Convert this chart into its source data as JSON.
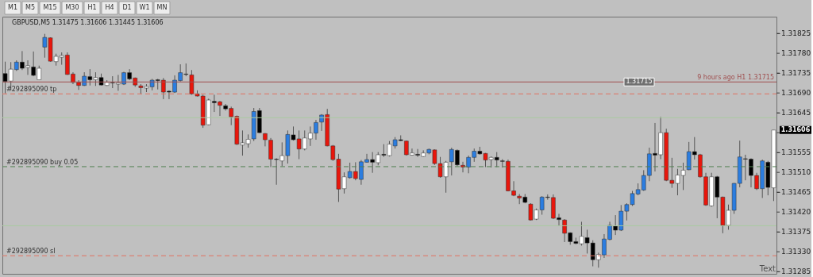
{
  "chart_data": {
    "type": "candlestick",
    "title": "GBPUSD,M5  1.31475 1.31606 1.31445 1.31606",
    "categories": [
      null,
      null,
      null,
      null,
      null,
      null,
      null,
      null,
      null,
      null,
      null,
      null,
      null,
      null,
      null,
      null,
      null,
      null,
      null,
      null,
      null,
      null,
      null,
      null,
      null,
      null,
      null,
      null,
      null,
      null,
      null,
      null,
      null,
      null,
      null,
      null,
      null,
      null,
      null,
      null,
      null,
      null,
      null,
      null,
      null,
      null,
      null,
      null,
      null,
      null,
      null,
      null,
      null,
      null,
      null,
      null,
      null,
      null,
      null,
      null,
      null,
      null,
      null,
      null,
      null,
      null,
      null,
      null,
      null,
      null,
      null,
      null,
      null,
      null,
      null,
      null,
      null,
      null,
      null,
      null,
      null,
      null,
      null,
      null,
      null,
      null,
      null,
      null,
      null,
      null,
      null,
      null,
      null,
      null,
      null,
      null,
      null,
      null,
      null,
      null,
      null,
      null,
      null,
      null,
      null,
      null,
      null,
      null,
      null,
      null,
      null,
      null,
      null,
      null,
      null,
      null,
      null,
      null,
      null,
      null,
      null,
      null,
      null,
      null,
      null,
      null,
      null,
      null,
      null,
      null,
      null,
      null,
      null,
      null,
      null,
      null,
      null
    ],
    "ohlc": [
      [
        1.31734,
        1.31761,
        1.31689,
        1.31716
      ],
      [
        1.31717,
        1.3176,
        1.31695,
        1.31744
      ],
      [
        1.31743,
        1.31764,
        1.3174,
        1.3176
      ],
      [
        1.3176,
        1.31785,
        1.31742,
        1.31746
      ],
      [
        1.31748,
        1.31764,
        1.31731,
        1.31752
      ],
      [
        1.31749,
        1.31784,
        1.31728,
        1.3173
      ],
      [
        1.3172,
        1.31752,
        1.3172,
        1.31746
      ],
      [
        1.31794,
        1.31824,
        1.3177,
        1.31816
      ],
      [
        1.31815,
        1.31816,
        1.31761,
        1.31762
      ],
      [
        1.31761,
        1.31779,
        1.31752,
        1.31773
      ],
      [
        1.31771,
        1.31782,
        1.31754,
        1.31775
      ],
      [
        1.31776,
        1.31782,
        1.31731,
        1.31732
      ],
      [
        1.31733,
        1.31737,
        1.3171,
        1.31714
      ],
      [
        1.31714,
        1.31719,
        1.31697,
        1.31707
      ],
      [
        1.31707,
        1.31737,
        1.31706,
        1.31728
      ],
      [
        1.31727,
        1.31744,
        1.31707,
        1.3172
      ],
      [
        1.3172,
        1.31737,
        1.31706,
        1.31725
      ],
      [
        1.31725,
        1.31734,
        1.31707,
        1.31708
      ],
      [
        1.31707,
        1.31719,
        1.31706,
        1.31714
      ],
      [
        1.31714,
        1.31728,
        1.31701,
        1.31713
      ],
      [
        1.3171,
        1.31731,
        1.31695,
        1.31713
      ],
      [
        1.3171,
        1.31738,
        1.31708,
        1.31736
      ],
      [
        1.31736,
        1.31744,
        1.31719,
        1.31722
      ],
      [
        1.31724,
        1.31725,
        1.31704,
        1.31708
      ],
      [
        1.31706,
        1.3171,
        1.31688,
        1.31702
      ],
      [
        1.31701,
        1.3171,
        1.31692,
        1.31705
      ],
      [
        1.31704,
        1.31722,
        1.31696,
        1.31719
      ],
      [
        1.3172,
        1.31722,
        1.31698,
        1.31718
      ],
      [
        1.31719,
        1.31724,
        1.31676,
        1.31692
      ],
      [
        1.31694,
        1.31696,
        1.31676,
        1.31692
      ],
      [
        1.31692,
        1.3173,
        1.3169,
        1.31719
      ],
      [
        1.31718,
        1.31755,
        1.31716,
        1.31736
      ],
      [
        1.31733,
        1.31757,
        1.31728,
        1.31732
      ],
      [
        1.31731,
        1.31742,
        1.31686,
        1.31688
      ],
      [
        1.31688,
        1.31696,
        1.31682,
        1.31683
      ],
      [
        1.31683,
        1.31686,
        1.31611,
        1.31617
      ],
      [
        1.31618,
        1.31677,
        1.31617,
        1.31674
      ],
      [
        1.31671,
        1.31686,
        1.31647,
        1.31668
      ],
      [
        1.3167,
        1.31672,
        1.31638,
        1.31662
      ],
      [
        1.31661,
        1.31665,
        1.3165,
        1.31654
      ],
      [
        1.31655,
        1.31659,
        1.31617,
        1.31636
      ],
      [
        1.31637,
        1.31639,
        1.31572,
        1.31574
      ],
      [
        1.31572,
        1.31605,
        1.31548,
        1.31577
      ],
      [
        1.31575,
        1.31596,
        1.31566,
        1.31585
      ],
      [
        1.31586,
        1.31656,
        1.31581,
        1.31648
      ],
      [
        1.3165,
        1.31656,
        1.31599,
        1.316
      ],
      [
        1.31598,
        1.31599,
        1.31569,
        1.31584
      ],
      [
        1.31583,
        1.31588,
        1.31522,
        1.3154
      ],
      [
        1.3154,
        1.31542,
        1.31482,
        1.31539
      ],
      [
        1.31536,
        1.31578,
        1.31524,
        1.31548
      ],
      [
        1.31548,
        1.31605,
        1.3153,
        1.31596
      ],
      [
        1.31595,
        1.31614,
        1.31582,
        1.31584
      ],
      [
        1.31586,
        1.31605,
        1.3154,
        1.31563
      ],
      [
        1.31563,
        1.31605,
        1.3156,
        1.31588
      ],
      [
        1.31586,
        1.31614,
        1.3157,
        1.31599
      ],
      [
        1.31599,
        1.31629,
        1.31584,
        1.31623
      ],
      [
        1.31624,
        1.31642,
        1.31604,
        1.3164
      ],
      [
        1.31641,
        1.31654,
        1.31569,
        1.3157
      ],
      [
        1.3157,
        1.31572,
        1.31536,
        1.31539
      ],
      [
        1.3154,
        1.31552,
        1.31443,
        1.31472
      ],
      [
        1.31473,
        1.3151,
        1.31462,
        1.315
      ],
      [
        1.31498,
        1.31532,
        1.31496,
        1.31512
      ],
      [
        1.31512,
        1.31533,
        1.31492,
        1.31496
      ],
      [
        1.31494,
        1.31538,
        1.31482,
        1.31534
      ],
      [
        1.31533,
        1.31552,
        1.31532,
        1.31539
      ],
      [
        1.31539,
        1.31556,
        1.31509,
        1.31533
      ],
      [
        1.31532,
        1.31556,
        1.31526,
        1.3155
      ],
      [
        1.31551,
        1.31574,
        1.31545,
        1.31549
      ],
      [
        1.31548,
        1.31581,
        1.31546,
        1.31574
      ],
      [
        1.3157,
        1.3159,
        1.31564,
        1.31584
      ],
      [
        1.31584,
        1.31594,
        1.31581,
        1.31582
      ],
      [
        1.31581,
        1.31582,
        1.31548,
        1.3155
      ],
      [
        1.31549,
        1.31564,
        1.31548,
        1.31554
      ],
      [
        1.31551,
        1.31563,
        1.31545,
        1.31549
      ],
      [
        1.31546,
        1.3156,
        1.31545,
        1.31554
      ],
      [
        1.31554,
        1.31564,
        1.31551,
        1.31562
      ],
      [
        1.31561,
        1.31562,
        1.31527,
        1.3153
      ],
      [
        1.3153,
        1.31545,
        1.31498,
        1.315
      ],
      [
        1.315,
        1.31536,
        1.31464,
        1.31533
      ],
      [
        1.31534,
        1.31566,
        1.31503,
        1.31562
      ],
      [
        1.3156,
        1.31562,
        1.31524,
        1.31527
      ],
      [
        1.31526,
        1.31534,
        1.3151,
        1.31522
      ],
      [
        1.31522,
        1.31548,
        1.31508,
        1.31544
      ],
      [
        1.31544,
        1.31564,
        1.31534,
        1.31558
      ],
      [
        1.31558,
        1.31568,
        1.3155,
        1.31552
      ],
      [
        1.31553,
        1.31554,
        1.31522,
        1.31538
      ],
      [
        1.31539,
        1.31546,
        1.31521,
        1.31544
      ],
      [
        1.31544,
        1.31556,
        1.31522,
        1.31538
      ],
      [
        1.31536,
        1.3154,
        1.31521,
        1.31535
      ],
      [
        1.31535,
        1.31539,
        1.31467,
        1.31468
      ],
      [
        1.31468,
        1.3149,
        1.31456,
        1.31458
      ],
      [
        1.31456,
        1.31461,
        1.31438,
        1.31452
      ],
      [
        1.31454,
        1.31461,
        1.3144,
        1.31442
      ],
      [
        1.31438,
        1.3144,
        1.31401,
        1.31402
      ],
      [
        1.31404,
        1.31428,
        1.31402,
        1.31425
      ],
      [
        1.31425,
        1.31456,
        1.31414,
        1.31454
      ],
      [
        1.31454,
        1.3146,
        1.31448,
        1.31453
      ],
      [
        1.31453,
        1.3146,
        1.31404,
        1.31406
      ],
      [
        1.31407,
        1.31416,
        1.31389,
        1.31403
      ],
      [
        1.31402,
        1.31404,
        1.31352,
        1.31372
      ],
      [
        1.31373,
        1.31374,
        1.31346,
        1.31353
      ],
      [
        1.31353,
        1.31362,
        1.31347,
        1.31349
      ],
      [
        1.31348,
        1.31398,
        1.31344,
        1.31365
      ],
      [
        1.31362,
        1.3138,
        1.31326,
        1.3135
      ],
      [
        1.3135,
        1.31356,
        1.31297,
        1.31312
      ],
      [
        1.31312,
        1.31328,
        1.31294,
        1.31324
      ],
      [
        1.31323,
        1.3137,
        1.31316,
        1.31359
      ],
      [
        1.31358,
        1.31398,
        1.31356,
        1.3139
      ],
      [
        1.31388,
        1.31413,
        1.31368,
        1.31379
      ],
      [
        1.31379,
        1.31436,
        1.31377,
        1.31422
      ],
      [
        1.31422,
        1.3144,
        1.31401,
        1.31437
      ],
      [
        1.31437,
        1.31468,
        1.31434,
        1.31462
      ],
      [
        1.31461,
        1.31485,
        1.31458,
        1.31471
      ],
      [
        1.3147,
        1.31515,
        1.31468,
        1.31503
      ],
      [
        1.31503,
        1.31566,
        1.3149,
        1.31552
      ],
      [
        1.31553,
        1.31622,
        1.31512,
        1.31549
      ],
      [
        1.3155,
        1.31636,
        1.3154,
        1.316
      ],
      [
        1.316,
        1.31609,
        1.3149,
        1.31492
      ],
      [
        1.31492,
        1.31543,
        1.31475,
        1.31485
      ],
      [
        1.31485,
        1.31518,
        1.31458,
        1.31504
      ],
      [
        1.31503,
        1.31532,
        1.3147,
        1.31515
      ],
      [
        1.31516,
        1.31579,
        1.31515,
        1.31557
      ],
      [
        1.31557,
        1.3159,
        1.31539,
        1.3155
      ],
      [
        1.3155,
        1.31552,
        1.31498,
        1.315
      ],
      [
        1.315,
        1.31509,
        1.31434,
        1.31436
      ],
      [
        1.31434,
        1.31509,
        1.31432,
        1.315
      ],
      [
        1.315,
        1.31502,
        1.31406,
        1.31454
      ],
      [
        1.31454,
        1.31455,
        1.31372,
        1.3139
      ],
      [
        1.3139,
        1.31437,
        1.3138,
        1.31424
      ],
      [
        1.31424,
        1.31486,
        1.31416,
        1.31485
      ],
      [
        1.31485,
        1.31582,
        1.31476,
        1.31545
      ],
      [
        1.31541,
        1.3155,
        1.31492,
        1.3154
      ],
      [
        1.3154,
        1.31542,
        1.31476,
        1.31503
      ],
      [
        1.31503,
        1.31509,
        1.3147,
        1.31473
      ],
      [
        1.31473,
        1.31539,
        1.31452,
        1.31536
      ],
      [
        1.31533,
        1.31536,
        1.31458,
        1.31476
      ],
      [
        1.31475,
        1.31606,
        1.31445,
        1.31606
      ]
    ],
    "colors": [
      "#000000",
      "#ffffff",
      "#2b7de0",
      "#000000",
      "#ffffff",
      "#000000",
      "#ffffff",
      "#2b7de0",
      "#e8160c",
      "#ffffff",
      "#ffffff",
      "#e8160c",
      "#e8160c",
      "#e8160c",
      "#2b7de0",
      "#000000",
      "#ffffff",
      "#000000",
      "#ffffff",
      "#000000",
      "#ffffff",
      "#2b7de0",
      "#000000",
      "#e8160c",
      "#e8160c",
      "#ffffff",
      "#2b7de0",
      "#000000",
      "#e8160c",
      "#000000",
      "#2b7de0",
      "#2b7de0",
      "#000000",
      "#e8160c",
      "#e8160c",
      "#e8160c",
      "#ffffff",
      "#000000",
      "#e8160c",
      "#000000",
      "#e8160c",
      "#e8160c",
      "#ffffff",
      "#ffffff",
      "#2b7de0",
      "#000000",
      "#e8160c",
      "#e8160c",
      "#000000",
      "#ffffff",
      "#2b7de0",
      "#000000",
      "#e8160c",
      "#ffffff",
      "#ffffff",
      "#2b7de0",
      "#2b7de0",
      "#e8160c",
      "#e8160c",
      "#e8160c",
      "#ffffff",
      "#2b7de0",
      "#e8160c",
      "#2b7de0",
      "#2b7de0",
      "#000000",
      "#ffffff",
      "#000000",
      "#ffffff",
      "#2b7de0",
      "#000000",
      "#e8160c",
      "#ffffff",
      "#000000",
      "#ffffff",
      "#2b7de0",
      "#e8160c",
      "#e8160c",
      "#ffffff",
      "#2b7de0",
      "#000000",
      "#e8160c",
      "#2b7de0",
      "#2b7de0",
      "#000000",
      "#e8160c",
      "#ffffff",
      "#000000",
      "#000000",
      "#e8160c",
      "#e8160c",
      "#e8160c",
      "#000000",
      "#e8160c",
      "#ffffff",
      "#2b7de0",
      "#000000",
      "#e8160c",
      "#000000",
      "#e8160c",
      "#000000",
      "#000000",
      "#ffffff",
      "#000000",
      "#000000",
      "#ffffff",
      "#2b7de0",
      "#2b7de0",
      "#000000",
      "#2b7de0",
      "#2b7de0",
      "#2b7de0",
      "#2b7de0",
      "#2b7de0",
      "#2b7de0",
      "#000000",
      "#ffffff",
      "#e8160c",
      "#e8160c",
      "#ffffff",
      "#ffffff",
      "#2b7de0",
      "#000000",
      "#e8160c",
      "#e8160c",
      "#ffffff",
      "#000000",
      "#e8160c",
      "#ffffff",
      "#2b7de0",
      "#2b7de0",
      "#000000",
      "#000000",
      "#e8160c",
      "#2b7de0",
      "#000000",
      "#ffffff"
    ],
    "ylim": [
      1.3128,
      1.31863
    ],
    "yticks": [
      1.31285,
      {
        "value": 1.3133,
        "label": "1.31330"
      },
      1.31375,
      {
        "value": 1.3142,
        "label": "1.31420"
      },
      1.31465,
      {
        "value": 1.3151,
        "label": "1.31510"
      },
      1.31555,
      {
        "value": 1.316,
        "label": null
      },
      1.31645,
      {
        "value": 1.3169,
        "label": "1.31690"
      },
      1.31735,
      {
        "value": 1.3178,
        "label": "1.31780"
      },
      1.31825
    ],
    "grid": false,
    "legend": false,
    "tick_labels": "y",
    "ref_lines": [
      {
        "axis": "y",
        "value": 1.31715,
        "label": "9 hours ago H1 1.31715",
        "color": "#a05050",
        "line_style": "solid"
      },
      {
        "axis": "y",
        "value": 1.31688,
        "label": "#292895090 tp",
        "color": "#e07060",
        "line_style": "dashed"
      },
      {
        "axis": "y",
        "value": 1.31523,
        "label": "#292895090 buy 0.05",
        "color": "#4f7f4f",
        "line_style": "dashed"
      },
      {
        "axis": "y",
        "value": 1.31321,
        "label": "#292895090 sl",
        "color": "#e07060",
        "line_style": "dashed"
      },
      {
        "axis": "y",
        "value": 1.31634,
        "color": "#a9c9a0",
        "line_style": "solid"
      },
      {
        "axis": "y",
        "value": 1.31389,
        "color": "#a9c9a0",
        "line_style": "solid"
      }
    ],
    "annotations": [
      "M1",
      "M5",
      "M15",
      "M30",
      "H1",
      "H4",
      "D1",
      "W1",
      "MN",
      "Text",
      "1.31606",
      {
        "text": "1.31715",
        "y": 1.31715
      }
    ]
  }
}
